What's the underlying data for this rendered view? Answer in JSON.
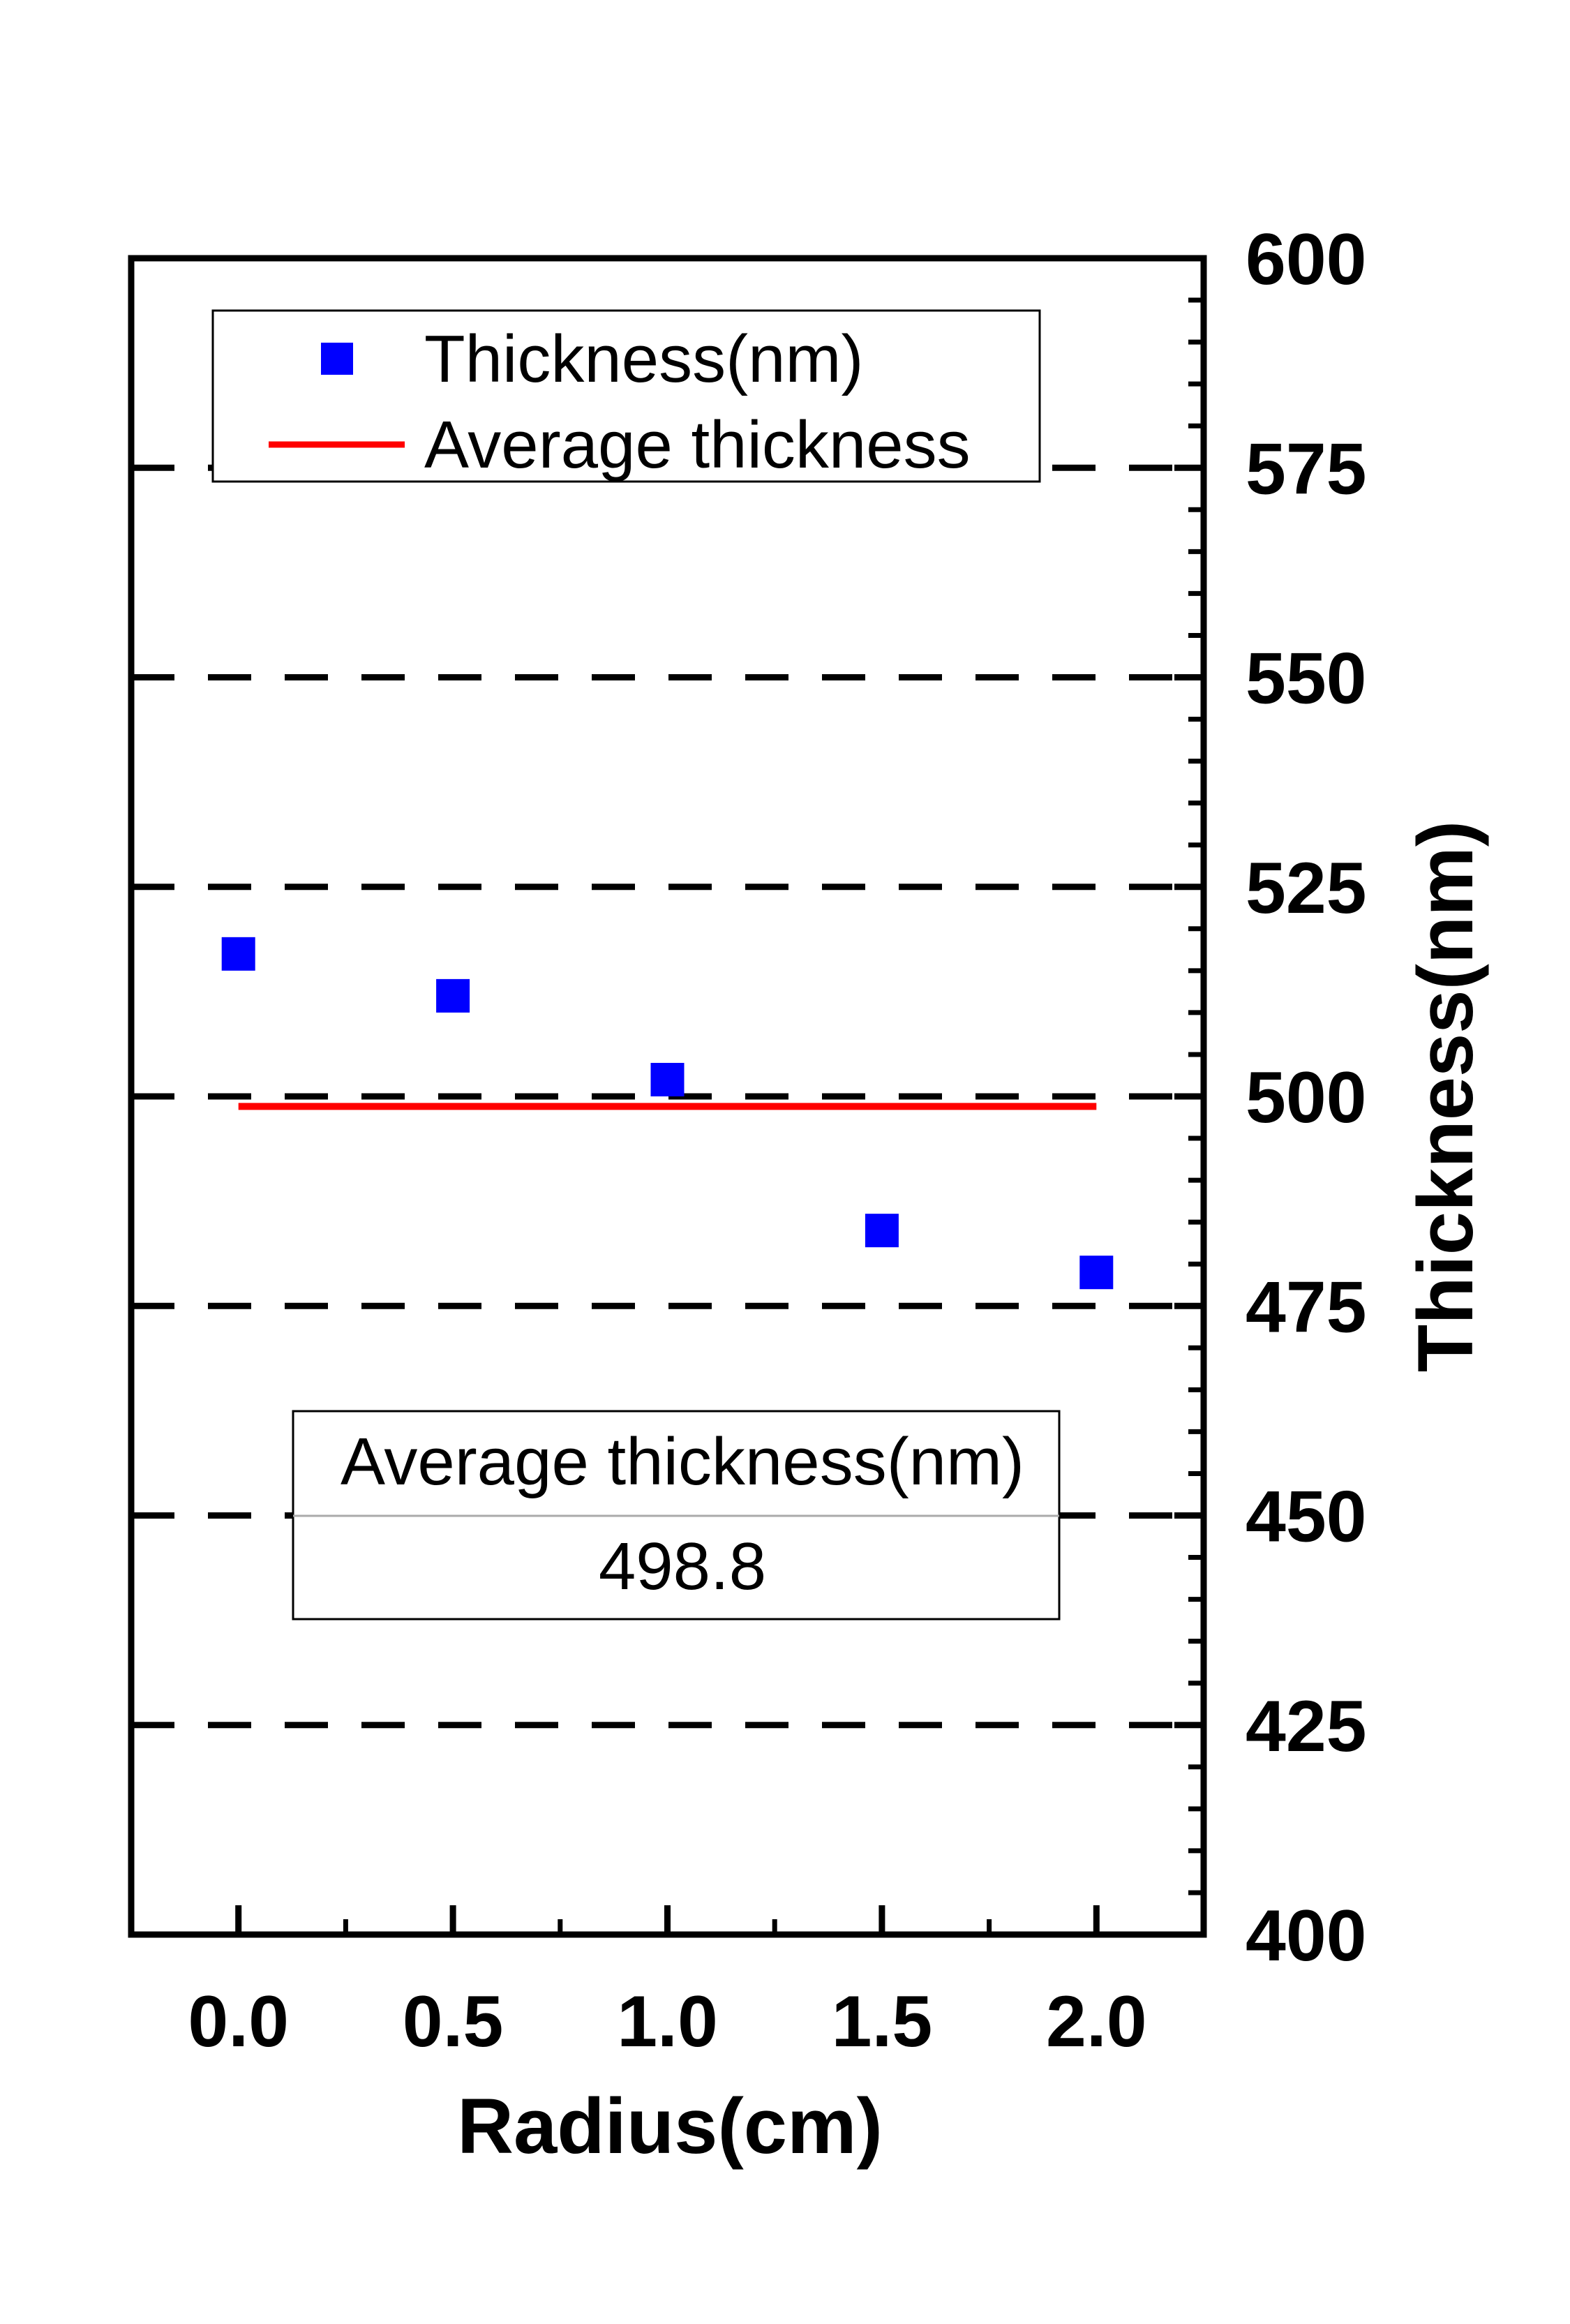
{
  "chart_data": {
    "type": "scatter",
    "xlabel": "Radius(cm)",
    "ylabel": "Thickness(nm)",
    "xlim": [
      -0.25,
      2.25
    ],
    "ylim": [
      400,
      600
    ],
    "x_ticks": [
      "0.0",
      "0.5",
      "1.0",
      "1.5",
      "2.0"
    ],
    "y_ticks": [
      "400",
      "425",
      "450",
      "475",
      "500",
      "525",
      "550",
      "575",
      "600"
    ],
    "y_axis_side": "right",
    "grid": "horizontal dashed",
    "legend_position": "top-left",
    "series": [
      {
        "name": "Thickness(nm)",
        "kind": "scatter",
        "marker": "square",
        "color": "#0000ff",
        "x": [
          0.0,
          0.5,
          1.0,
          1.5,
          2.0
        ],
        "y": [
          517,
          512,
          502,
          484,
          479
        ]
      },
      {
        "name": "Average thickness",
        "kind": "line",
        "color": "#ff0000",
        "x": [
          0.0,
          2.0
        ],
        "y": [
          498.8,
          498.8
        ]
      }
    ],
    "annotation_table": {
      "header": "Average thickness(nm)",
      "value": "498.8"
    }
  }
}
